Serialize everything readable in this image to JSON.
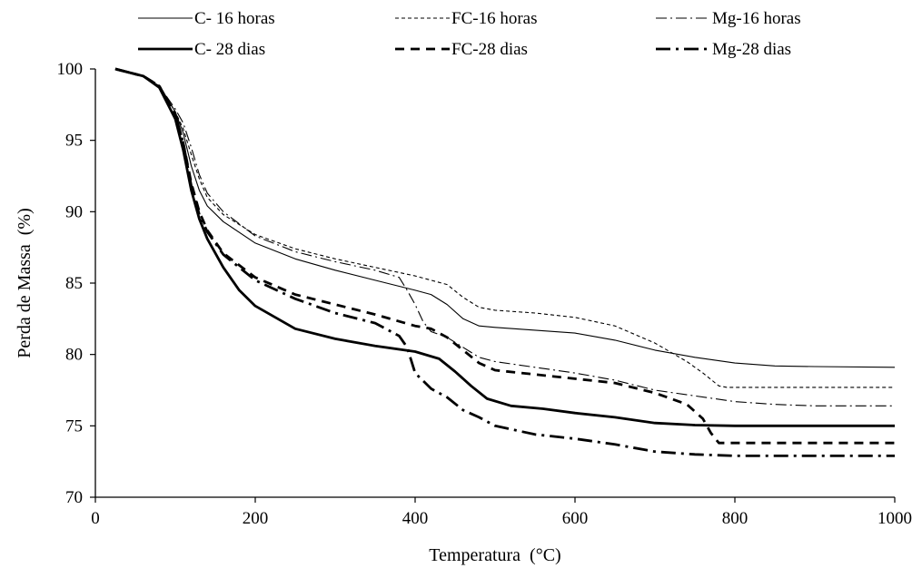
{
  "chart_data": {
    "type": "line",
    "title": "",
    "xlabel": "Temperatura  (°C)",
    "ylabel": "Perda de Massa  (%)",
    "xlim": [
      0,
      1000
    ],
    "ylim": [
      70,
      100
    ],
    "xticks": [
      "0",
      "200",
      "400",
      "600",
      "800",
      "1000"
    ],
    "yticks": [
      "70",
      "75",
      "80",
      "85",
      "90",
      "95",
      "100"
    ],
    "grid": false,
    "legend_position": "top",
    "series": [
      {
        "name": "C- 16 horas",
        "style": "solid-thin",
        "x": [
          25,
          60,
          80,
          100,
          110,
          120,
          130,
          140,
          160,
          200,
          250,
          300,
          350,
          400,
          420,
          440,
          460,
          480,
          500,
          550,
          600,
          650,
          700,
          750,
          800,
          850,
          900,
          1000
        ],
        "y": [
          100,
          99.5,
          98.8,
          97,
          95.5,
          93.2,
          91.5,
          90.4,
          89.3,
          87.8,
          86.7,
          85.9,
          85.2,
          84.5,
          84.2,
          83.5,
          82.5,
          82.0,
          81.9,
          81.7,
          81.5,
          81.0,
          80.3,
          79.8,
          79.4,
          79.2,
          79.15,
          79.1
        ]
      },
      {
        "name": "FC-16 horas",
        "style": "dotted-thin",
        "x": [
          25,
          60,
          80,
          100,
          110,
          120,
          130,
          140,
          160,
          200,
          250,
          300,
          350,
          400,
          440,
          460,
          480,
          500,
          550,
          600,
          650,
          700,
          740,
          760,
          780,
          790,
          1000
        ],
        "y": [
          100,
          99.5,
          98.8,
          97,
          95.8,
          94,
          92.3,
          91,
          89.8,
          88.4,
          87.4,
          86.7,
          86.1,
          85.5,
          84.9,
          84.0,
          83.3,
          83.1,
          82.9,
          82.6,
          82.0,
          80.8,
          79.5,
          78.7,
          77.8,
          77.7,
          77.7
        ]
      },
      {
        "name": "Mg-16 horas",
        "style": "dashdot-thin",
        "x": [
          25,
          60,
          80,
          100,
          110,
          120,
          130,
          140,
          160,
          200,
          250,
          300,
          350,
          380,
          390,
          400,
          410,
          420,
          440,
          460,
          480,
          500,
          550,
          600,
          650,
          700,
          750,
          800,
          850,
          900,
          1000
        ],
        "y": [
          100,
          99.5,
          98.8,
          97.2,
          96.2,
          94.5,
          92.6,
          91.3,
          90,
          88.3,
          87.2,
          86.5,
          85.9,
          85.4,
          84.5,
          83.5,
          82.3,
          81.6,
          81.2,
          80.5,
          79.8,
          79.5,
          79.1,
          78.7,
          78.2,
          77.5,
          77.1,
          76.7,
          76.5,
          76.4,
          76.4
        ]
      },
      {
        "name": "C- 28 dias",
        "style": "solid-thick",
        "x": [
          25,
          60,
          80,
          100,
          110,
          120,
          130,
          140,
          160,
          180,
          200,
          250,
          300,
          350,
          400,
          430,
          450,
          470,
          490,
          520,
          560,
          600,
          650,
          700,
          750,
          800,
          1000
        ],
        "y": [
          100,
          99.5,
          98.7,
          96.5,
          94.3,
          91.5,
          89.5,
          88.1,
          86.1,
          84.5,
          83.4,
          81.8,
          81.1,
          80.6,
          80.2,
          79.7,
          78.8,
          77.8,
          76.9,
          76.4,
          76.2,
          75.9,
          75.6,
          75.2,
          75.05,
          75.0,
          75.0
        ]
      },
      {
        "name": "FC-28 dias",
        "style": "dashed-thick",
        "x": [
          25,
          60,
          80,
          100,
          110,
          120,
          130,
          140,
          160,
          200,
          250,
          300,
          350,
          400,
          420,
          440,
          460,
          480,
          500,
          550,
          600,
          650,
          700,
          740,
          760,
          770,
          780,
          1000
        ],
        "y": [
          100,
          99.5,
          98.8,
          96.8,
          94.8,
          92.0,
          90.0,
          88.7,
          87.1,
          85.4,
          84.2,
          83.5,
          82.8,
          82.0,
          81.8,
          81.2,
          80.3,
          79.4,
          78.9,
          78.6,
          78.3,
          78.0,
          77.3,
          76.5,
          75.5,
          74.5,
          73.8,
          73.8
        ]
      },
      {
        "name": "Mg-28 dias",
        "style": "dashdot-thick",
        "x": [
          25,
          60,
          80,
          100,
          110,
          120,
          130,
          140,
          160,
          200,
          250,
          300,
          350,
          380,
          390,
          400,
          420,
          440,
          460,
          480,
          500,
          550,
          600,
          650,
          700,
          750,
          800,
          1000
        ],
        "y": [
          100,
          99.5,
          98.8,
          96.8,
          94.8,
          91.8,
          89.8,
          88.6,
          87.0,
          85.2,
          83.9,
          82.9,
          82.2,
          81.3,
          80.5,
          78.7,
          77.6,
          77.0,
          76.1,
          75.6,
          75.0,
          74.4,
          74.1,
          73.7,
          73.2,
          73.0,
          72.9,
          72.9
        ]
      }
    ]
  }
}
